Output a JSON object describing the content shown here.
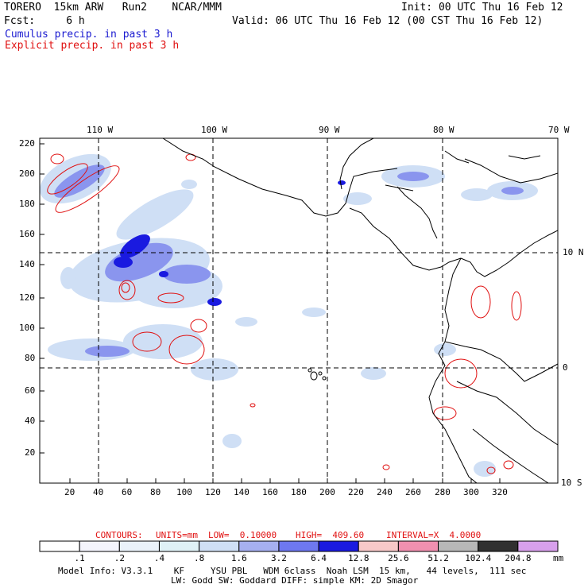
{
  "header": {
    "line1_left": "TORERO  15km ARW   Run2    NCAR/MMM",
    "line1_right": "Init: 00 UTC Thu 16 Feb 12",
    "line2_left": "Fcst:     6 h",
    "line2_right": "Valid: 06 UTC Thu 16 Feb 12 (00 CST Thu 16 Feb 12)",
    "legend_cumulus": "Cumulus precip. in past 3 h",
    "legend_explicit": "Explicit precip. in past 3 h"
  },
  "map": {
    "lon_labels": [
      "110 W",
      "100 W",
      "90 W",
      "80 W",
      "70 W"
    ],
    "lat_labels": [
      "10 N",
      "0",
      "10 S"
    ],
    "y_ticks": [
      "220",
      "200",
      "180",
      "160",
      "140",
      "120",
      "100",
      "80",
      "60",
      "40",
      "20"
    ],
    "x_ticks": [
      "20",
      "40",
      "60",
      "80",
      "100",
      "120",
      "140",
      "160",
      "180",
      "200",
      "220",
      "240",
      "260",
      "280",
      "300",
      "320"
    ]
  },
  "contour_info": {
    "label": "CONTOURS:",
    "units": "UNITS=mm",
    "low": "LOW=  0.10000",
    "high": "HIGH=  409.60",
    "interval": "INTERVAL=X  4.0000"
  },
  "colorbar": {
    "colors": [
      "#ffffff",
      "#f4f4fc",
      "#eaf2fa",
      "#dff1f6",
      "#cfdff5",
      "#a6b0f0",
      "#6e78f0",
      "#1a1ae0",
      "#f8c8c8",
      "#f090b0",
      "#b8b8b8",
      "#303030",
      "#d8a0ec"
    ],
    "labels": [
      ".1",
      ".2",
      ".4",
      ".8",
      "1.6",
      "3.2",
      "6.4",
      "12.8",
      "25.6",
      "51.2",
      "102.4",
      "204.8"
    ],
    "unit": "mm"
  },
  "footer": {
    "line1": "Model Info: V3.3.1    KF     YSU PBL   WDM 6class  Noah LSM  15 km,   44 levels,  111 sec",
    "line2": "LW: Godd SW: Goddard DIFF: simple KM: 2D Smagor"
  }
}
